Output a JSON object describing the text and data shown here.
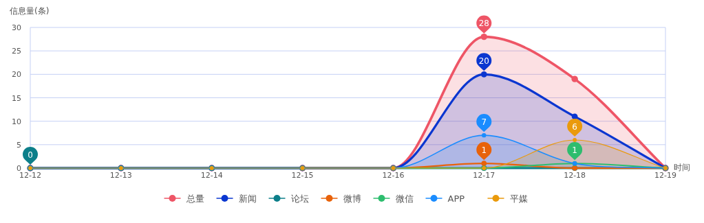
{
  "chart_data": {
    "type": "area",
    "xlabel": "时间",
    "ylabel": "信息量(条)",
    "categories": [
      "12-12",
      "12-13",
      "12-14",
      "12-15",
      "12-16",
      "12-17",
      "12-18",
      "12-19"
    ],
    "series": [
      {
        "name": "总量",
        "color": "#ee5566",
        "values": [
          0,
          0,
          0,
          0,
          0,
          28,
          19,
          0
        ]
      },
      {
        "name": "新闻",
        "color": "#0a36d0",
        "values": [
          0,
          0,
          0,
          0,
          0,
          20,
          11,
          0
        ]
      },
      {
        "name": "论坛",
        "color": "#0c7f8a",
        "type": "line",
        "values": [
          0,
          0,
          0,
          0,
          0,
          0,
          0,
          0
        ]
      },
      {
        "name": "微博",
        "color": "#e8620a",
        "type": "line",
        "values": [
          null,
          null,
          null,
          0,
          0,
          1,
          0,
          0
        ]
      },
      {
        "name": "微信",
        "color": "#2dbd6e",
        "type": "line",
        "values": [
          0,
          0,
          0,
          0,
          0,
          0,
          1,
          0
        ]
      },
      {
        "name": "APP",
        "color": "#1a8cff",
        "values": [
          0,
          0,
          0,
          0,
          0,
          7,
          1,
          0
        ]
      },
      {
        "name": "平媒",
        "color": "#ea9a0c",
        "values": [
          0,
          0,
          0,
          0,
          0,
          0,
          6,
          0
        ]
      }
    ],
    "ylim": [
      0,
      30
    ],
    "yticks": [
      0,
      5,
      10,
      15,
      20,
      25,
      30
    ],
    "grid": "y",
    "legend": "bottom",
    "marker": "circle",
    "line_style": "solid",
    "annotations": [
      {
        "text": "28",
        "x": "12-17",
        "y": 28
      },
      {
        "text": "20",
        "x": "12-17",
        "y": 20
      },
      {
        "text": "0",
        "x": "12-12",
        "y": 0
      },
      {
        "text": "1",
        "x": "12-17",
        "y": 1
      },
      {
        "text": "1",
        "x": "12-18",
        "y": 1
      },
      {
        "text": "7",
        "x": "12-17",
        "y": 7
      },
      {
        "text": "6",
        "x": "12-18",
        "y": 6
      }
    ]
  }
}
